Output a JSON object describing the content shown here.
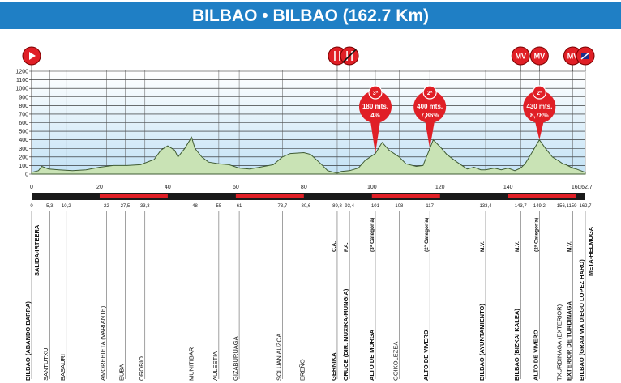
{
  "title": "BILBAO • BILBAO (162.7 Km)",
  "colors": {
    "title_bar": "#1f7fc5",
    "profile_fill": "#c9e3b5",
    "profile_stroke": "#3f5b33",
    "sky_top": "#ffffff",
    "sky_bottom": "#c3e2f5",
    "red_marker": "#e01f26",
    "bar_red": "#e01f26",
    "bar_dark": "#1a1a1a"
  },
  "chart_data": {
    "type": "area",
    "title": "BILBAO • BILBAO (162.7 Km)",
    "xlabel": "",
    "ylabel": "",
    "xlim": [
      0,
      162.7
    ],
    "ylim": [
      0,
      1200
    ],
    "y_ticks": [
      0,
      100,
      200,
      300,
      400,
      500,
      600,
      700,
      800,
      900,
      1000,
      1100,
      1200
    ],
    "distance_ticks": [
      "0",
      "20",
      "40",
      "60",
      "80",
      "100",
      "120",
      "140",
      "160",
      "162,7"
    ],
    "grid": true,
    "profile": [
      [
        0,
        20
      ],
      [
        2,
        40
      ],
      [
        3,
        90
      ],
      [
        5,
        60
      ],
      [
        8,
        50
      ],
      [
        12,
        40
      ],
      [
        16,
        50
      ],
      [
        20,
        80
      ],
      [
        24,
        100
      ],
      [
        28,
        100
      ],
      [
        32,
        110
      ],
      [
        36,
        170
      ],
      [
        38,
        280
      ],
      [
        40,
        330
      ],
      [
        42,
        280
      ],
      [
        43,
        200
      ],
      [
        45,
        300
      ],
      [
        47,
        430
      ],
      [
        48,
        300
      ],
      [
        50,
        200
      ],
      [
        52,
        140
      ],
      [
        55,
        120
      ],
      [
        58,
        110
      ],
      [
        61,
        70
      ],
      [
        64,
        60
      ],
      [
        67,
        80
      ],
      [
        71,
        110
      ],
      [
        73.7,
        200
      ],
      [
        76,
        240
      ],
      [
        80,
        250
      ],
      [
        82,
        230
      ],
      [
        85,
        120
      ],
      [
        87,
        40
      ],
      [
        89.8,
        10
      ],
      [
        91,
        30
      ],
      [
        93.4,
        40
      ],
      [
        96,
        70
      ],
      [
        98,
        160
      ],
      [
        101,
        240
      ],
      [
        103,
        370
      ],
      [
        105,
        280
      ],
      [
        108,
        200
      ],
      [
        110,
        120
      ],
      [
        113,
        90
      ],
      [
        115,
        100
      ],
      [
        117,
        300
      ],
      [
        118,
        400
      ],
      [
        120,
        320
      ],
      [
        122,
        230
      ],
      [
        125,
        140
      ],
      [
        128,
        60
      ],
      [
        130,
        80
      ],
      [
        132,
        50
      ],
      [
        133.4,
        50
      ],
      [
        136,
        70
      ],
      [
        138,
        50
      ],
      [
        140,
        70
      ],
      [
        142,
        40
      ],
      [
        143.7,
        70
      ],
      [
        145,
        120
      ],
      [
        147,
        250
      ],
      [
        149.2,
        400
      ],
      [
        151,
        300
      ],
      [
        153,
        200
      ],
      [
        155,
        150
      ],
      [
        156.1,
        120
      ],
      [
        157,
        110
      ],
      [
        159,
        70
      ],
      [
        160,
        60
      ],
      [
        162,
        30
      ],
      [
        162.7,
        20
      ]
    ],
    "climbs": [
      {
        "km": 101,
        "category": "3ª",
        "length": "180 mts.",
        "grade": "4%"
      },
      {
        "km": 117,
        "category": "2ª",
        "length": "400 mts.",
        "grade": "7,86%"
      },
      {
        "km": 149.2,
        "category": "2ª",
        "length": "430 mts.",
        "grade": "8,78%"
      }
    ],
    "top_markers": [
      {
        "km": 0,
        "kind": "start",
        "label": ""
      },
      {
        "km": 89.8,
        "kind": "feed",
        "label": ""
      },
      {
        "km": 93.4,
        "kind": "feed-end",
        "label": ""
      },
      {
        "km": 143.7,
        "kind": "mv",
        "label": "MV"
      },
      {
        "km": 149.2,
        "kind": "mv",
        "label": "MV"
      },
      {
        "km": 159,
        "kind": "mv",
        "label": "MV"
      },
      {
        "km": 162.7,
        "kind": "finish",
        "label": ""
      }
    ],
    "red_segments": [
      [
        20,
        40
      ],
      [
        60,
        80
      ],
      [
        100,
        120
      ],
      [
        140,
        160
      ]
    ],
    "waypoints": [
      {
        "km": 0,
        "km_label": "0",
        "name": "BILBAO (ABANDO BARRA)",
        "extra": "SALIDA-IRTEERA",
        "bold": true,
        "extra_bold": true
      },
      {
        "km": 5.3,
        "km_label": "5,3",
        "name": "SANTUTXU"
      },
      {
        "km": 10.2,
        "km_label": "10,2",
        "name": "BASAURI"
      },
      {
        "km": 22,
        "km_label": "22",
        "name": "AMOREBIETA (VARIANTE)"
      },
      {
        "km": 27.5,
        "km_label": "27,5",
        "name": "EUBA"
      },
      {
        "km": 33.3,
        "km_label": "33,3",
        "name": "OROBIO"
      },
      {
        "km": 48,
        "km_label": "48",
        "name": "MUNITIBAR"
      },
      {
        "km": 55,
        "km_label": "55",
        "name": "AULESTIA"
      },
      {
        "km": 61,
        "km_label": "61",
        "name": "GIZABURUAGA"
      },
      {
        "km": 73.7,
        "km_label": "73,7",
        "name": "SOLUAN AUZOA"
      },
      {
        "km": 80.6,
        "km_label": "80,6",
        "name": "EREÑO"
      },
      {
        "km": 89.8,
        "km_label": "89,8",
        "name": "GERNIKA",
        "tag": "C.A.",
        "bold": true
      },
      {
        "km": 93.4,
        "km_label": "93,4",
        "name": "CRUCE (DIR. MUXIKA-MUNGIA)",
        "tag": "F.A.",
        "bold": true
      },
      {
        "km": 101,
        "km_label": "101",
        "name": "ALTO DE MORGA",
        "tag": "(3ª Categoría)",
        "bold": true
      },
      {
        "km": 108,
        "km_label": "108",
        "name": "GOIKOLEZEA"
      },
      {
        "km": 117,
        "km_label": "117",
        "name": "ALTO DE VIVERO",
        "tag": "(2ª Categoría)",
        "bold": true
      },
      {
        "km": 133.4,
        "km_label": "133,4",
        "name": "BILBAO (AYUNTAMIENTO)",
        "tag": "M.V.",
        "bold": true
      },
      {
        "km": 143.7,
        "km_label": "143,7",
        "name": "BILBAO (BIZKAI KALEA)",
        "tag": "M.V.",
        "bold": true
      },
      {
        "km": 149.2,
        "km_label": "149,2",
        "name": "ALTO DE VIVERO",
        "tag": "(2ª Categoría)",
        "bold": true
      },
      {
        "km": 156.1,
        "km_label": "156,1",
        "name": "TXURDINAGA (EXTERIOR)"
      },
      {
        "km": 159,
        "km_label": "159",
        "name": "EXTERIOR DE TURDINAGA",
        "tag": "M.V.",
        "bold": true
      },
      {
        "km": 162.7,
        "km_label": "162,7",
        "name": "BILBAO (GRAN VIA DIEGO LOPEZ HARO)",
        "extra": "META-HELMUGA",
        "bold": true,
        "extra_bold": true
      }
    ]
  }
}
